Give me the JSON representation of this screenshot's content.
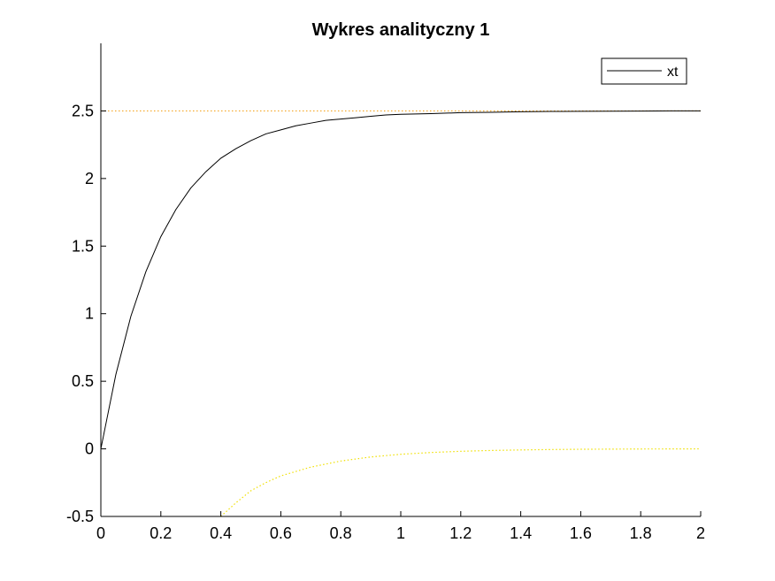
{
  "chart_data": {
    "type": "line",
    "title": "Wykres analityczny 1",
    "xlabel": "",
    "ylabel": "",
    "xlim": [
      0,
      2
    ],
    "ylim": [
      -0.5,
      3
    ],
    "xticks": [
      0,
      0.2,
      0.4,
      0.6,
      0.8,
      1,
      1.2,
      1.4,
      1.6,
      1.8,
      2
    ],
    "xtick_labels": [
      "0",
      "0.2",
      "0.4",
      "0.6",
      "0.8",
      "1",
      "1.2",
      "1.4",
      "1.6",
      "1.8",
      "2"
    ],
    "yticks": [
      -0.5,
      0,
      0.5,
      1,
      1.5,
      2,
      2.5
    ],
    "ytick_labels": [
      "-0.5",
      "0",
      "0.5",
      "1",
      "1.5",
      "2",
      "2.5"
    ],
    "grid": false,
    "legend_position": "top-right",
    "series": [
      {
        "name": "xt",
        "style": "solid",
        "color": "#000000",
        "x": [
          0,
          0.05,
          0.1,
          0.15,
          0.2,
          0.25,
          0.3,
          0.35,
          0.4,
          0.45,
          0.5,
          0.55,
          0.6,
          0.65,
          0.7,
          0.75,
          0.8,
          0.85,
          0.9,
          0.95,
          1,
          1.1,
          1.2,
          1.3,
          1.4,
          1.5,
          1.6,
          1.7,
          1.8,
          1.9,
          2
        ],
        "values": [
          0,
          0.55,
          0.98,
          1.31,
          1.57,
          1.77,
          1.93,
          2.05,
          2.15,
          2.22,
          2.28,
          2.33,
          2.36,
          2.39,
          2.41,
          2.43,
          2.44,
          2.45,
          2.46,
          2.47,
          2.475,
          2.48,
          2.487,
          2.49,
          2.494,
          2.496,
          2.497,
          2.498,
          2.499,
          2.5,
          2.5
        ]
      },
      {
        "style": "dotted",
        "color": "#f5a623",
        "x": [
          0,
          2
        ],
        "values": [
          2.5,
          2.5
        ]
      },
      {
        "style": "dotted",
        "color": "#f0e000",
        "x": [
          0.4,
          0.45,
          0.5,
          0.55,
          0.6,
          0.7,
          0.8,
          0.9,
          1,
          1.1,
          1.2,
          1.3,
          1.4,
          1.5,
          1.6,
          1.7,
          1.8,
          1.9,
          2
        ],
        "values": [
          -0.5,
          -0.4,
          -0.31,
          -0.25,
          -0.2,
          -0.135,
          -0.09,
          -0.06,
          -0.04,
          -0.027,
          -0.018,
          -0.012,
          -0.008,
          -0.005,
          -0.003,
          -0.002,
          -0.001,
          -0.0005,
          0
        ]
      }
    ]
  }
}
